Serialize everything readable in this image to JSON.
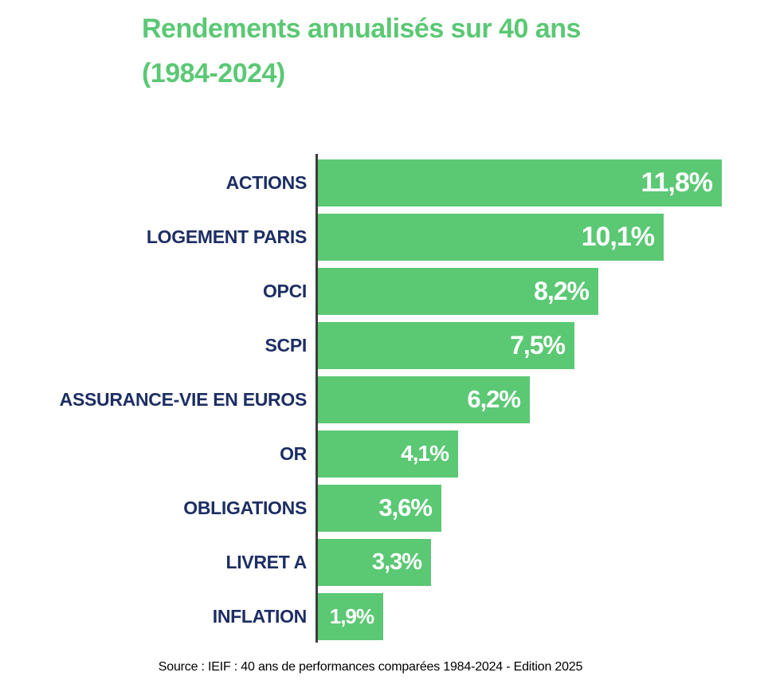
{
  "title": {
    "line1": "Rendements annualisés sur 40 ans",
    "line2": "(1984-2024)"
  },
  "source": "Source : IEIF : 40 ans de performances comparées 1984-2024 - Edition 2025",
  "colors": {
    "bar_green": "#5bc874",
    "title_green": "#5bc874",
    "label_navy": "#1d2e63",
    "value_text": "#ffffff",
    "axis_line": "#3d3d3d",
    "background": "#ffffff"
  },
  "chart_data": {
    "type": "bar",
    "orientation": "horizontal",
    "title": "Rendements annualisés sur 40 ans (1984-2024)",
    "categories": [
      "ACTIONS",
      "LOGEMENT PARIS",
      "OPCI",
      "SCPI",
      "ASSURANCE-VIE EN EUROS",
      "OR",
      "OBLIGATIONS",
      "LIVRET A",
      "INFLATION"
    ],
    "values": [
      11.8,
      10.1,
      8.2,
      7.5,
      6.2,
      4.1,
      3.6,
      3.3,
      1.9
    ],
    "value_labels": [
      "11,8%",
      "10,1%",
      "8,2%",
      "7,5%",
      "6,2%",
      "4,1%",
      "3,6%",
      "3,3%",
      "1,9%"
    ],
    "unit": "%",
    "xlim": [
      0,
      12
    ],
    "grid": false,
    "legend": false,
    "value_label_position": "inside-end",
    "source": "Source : IEIF : 40 ans de performances comparées 1984-2024 - Edition 2025"
  }
}
